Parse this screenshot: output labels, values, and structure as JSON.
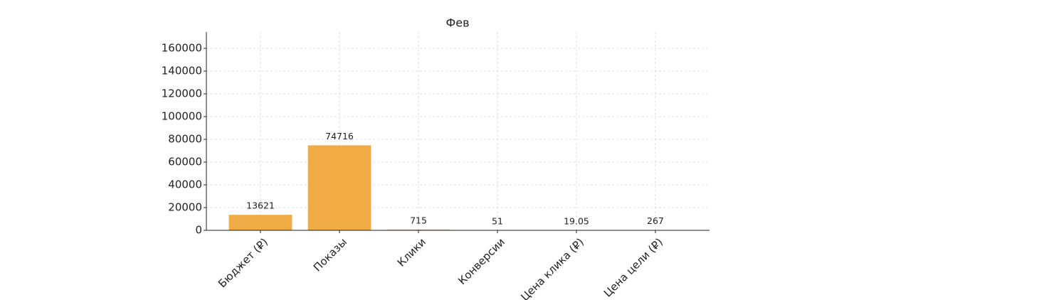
{
  "chart_data": {
    "type": "bar",
    "title": "Фев",
    "categories": [
      "Бюджет (₽)",
      "Показы",
      "Клики",
      "Конверсии",
      "Цена клика (₽)",
      "Цена цели (₽)"
    ],
    "values": [
      13621,
      74716,
      715,
      51,
      19.05,
      267
    ],
    "color": "#f0a63a",
    "ylim": [
      0,
      174375
    ],
    "yticks": [
      0,
      20000,
      40000,
      60000,
      80000,
      100000,
      120000,
      140000,
      160000
    ],
    "grid": true
  }
}
